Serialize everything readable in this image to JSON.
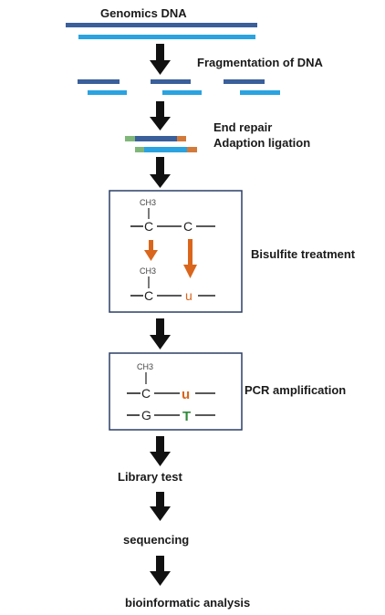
{
  "steps": {
    "genomics": "Genomics DNA",
    "fragmentation": "Fragmentation of DNA",
    "end_repair": "End repair",
    "adaption": "Adaption ligation",
    "bisulfite": "Bisulfite treatment",
    "pcr": "PCR amplification",
    "library": "Library test",
    "sequencing": "sequencing",
    "bioinformatic": "bioinformatic analysis"
  },
  "bisulfite_box": {
    "methyl_top": "CH3",
    "top_c1": "C",
    "top_c2": "C",
    "methyl_bottom": "CH3",
    "bottom_c": "C",
    "bottom_u": "u"
  },
  "pcr_box": {
    "methyl": "CH3",
    "c": "C",
    "u": "u",
    "g": "G",
    "t": "T"
  },
  "colors": {
    "dark_strand": "#3a5f9a",
    "light_strand": "#2aa3e0",
    "adapter_green": "#7fb77a",
    "adapter_orange": "#d27a3c",
    "arrow": "#111111",
    "orange_arrow": "#d9661c",
    "u_orange": "#d9661c",
    "t_green": "#2e8b3a",
    "box_border": "#2b3f66"
  }
}
